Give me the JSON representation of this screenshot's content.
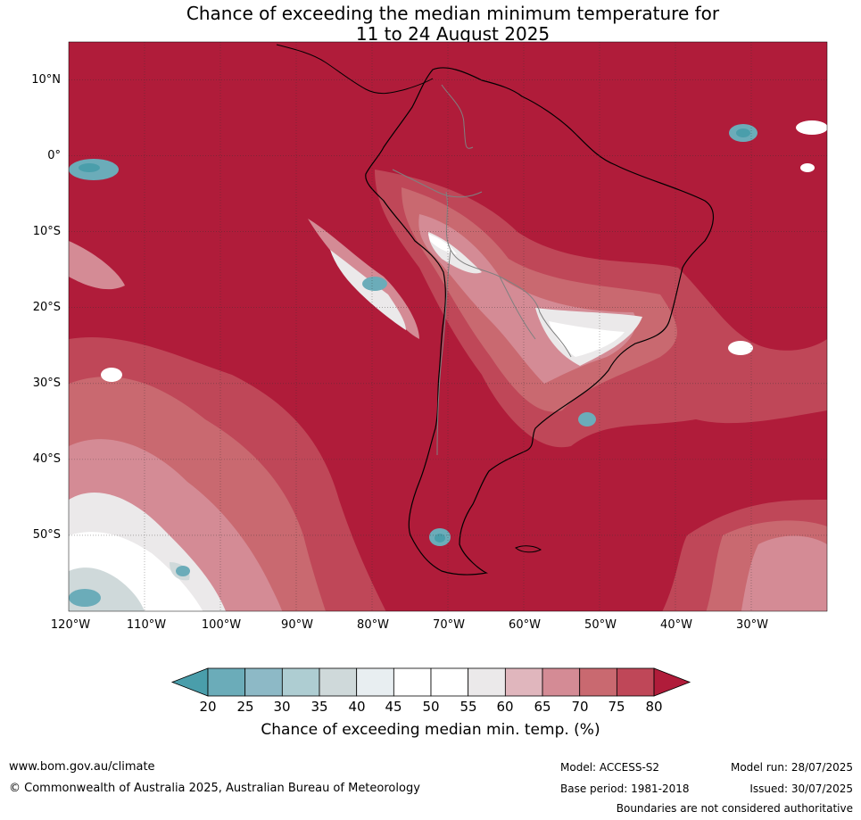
{
  "title_line1": "Chance of exceeding the median minimum temperature for",
  "title_line2": "11 to 24 August 2025",
  "map": {
    "lat_labels": [
      "10°N",
      "0°",
      "10°S",
      "20°S",
      "30°S",
      "40°S",
      "50°S"
    ],
    "lon_labels": [
      "120°W",
      "110°W",
      "100°W",
      "90°W",
      "80°W",
      "70°W",
      "60°W",
      "50°W",
      "40°W",
      "30°W"
    ],
    "lon_range": [
      -120,
      -20
    ],
    "lat_range": [
      -60,
      15
    ],
    "gridlines": true
  },
  "colorbar": {
    "label": "Chance of exceeding median min. temp. (%)",
    "ticks": [
      "20",
      "25",
      "30",
      "35",
      "40",
      "45",
      "50",
      "55",
      "60",
      "65",
      "70",
      "75",
      "80"
    ],
    "colors": [
      "#4a9eab",
      "#6bacb9",
      "#8db9c6",
      "#aecdd2",
      "#cfd9da",
      "#e8eef1",
      "#ffffff",
      "#ffffff",
      "#ebe9ea",
      "#e0b6bd",
      "#d48b95",
      "#c96970",
      "#bf4758",
      "#b01c3a"
    ]
  },
  "footer": {
    "website": "www.bom.gov.au/climate",
    "copyright": "© Commonwealth of Australia 2025, Australian Bureau of Meteorology",
    "model": "Model: ACCESS-S2",
    "base_period": "Base period: 1981-2018",
    "model_run": "Model run: 28/07/2025",
    "issued": "Issued: 30/07/2025",
    "disclaimer": "Boundaries are not considered authoritative"
  }
}
